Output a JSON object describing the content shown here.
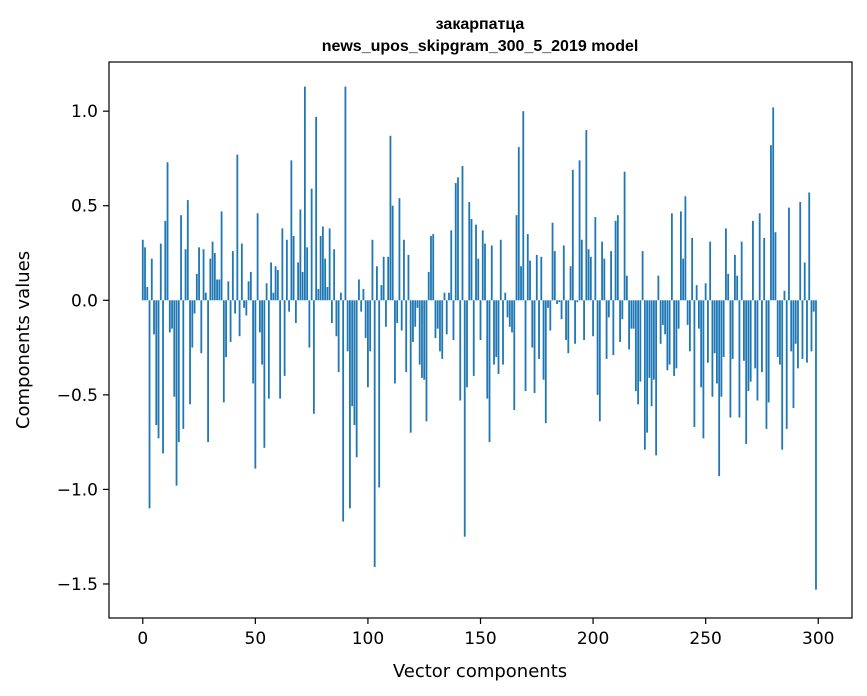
{
  "chart_data": {
    "type": "bar",
    "title_line1": "закарпатца",
    "title_line2": "news_upos_skipgram_300_5_2019 model",
    "xlabel": "Vector components",
    "ylabel": "Components values",
    "xlim": [
      -15,
      315
    ],
    "ylim": [
      -1.68,
      1.26
    ],
    "xticks": [
      0,
      50,
      100,
      150,
      200,
      250,
      300
    ],
    "xtick_labels": [
      "0",
      "50",
      "100",
      "150",
      "200",
      "250",
      "300"
    ],
    "yticks": [
      -1.5,
      -1.0,
      -0.5,
      0.0,
      0.5,
      1.0
    ],
    "ytick_labels": [
      "−1.5",
      "−1.0",
      "−0.5",
      "0.0",
      "0.5",
      "1.0"
    ],
    "grid": false,
    "bar_color": "#1f77b4",
    "values": [
      0.32,
      0.28,
      0.07,
      -1.1,
      0.22,
      -0.18,
      -0.66,
      -0.73,
      0.3,
      -0.81,
      0.42,
      0.73,
      -0.17,
      -0.15,
      -0.51,
      -0.98,
      -0.75,
      0.45,
      -0.68,
      0.27,
      0.53,
      -0.55,
      -0.25,
      -0.07,
      0.14,
      0.28,
      -0.28,
      0.27,
      0.04,
      -0.75,
      0.22,
      0.31,
      0.25,
      0.11,
      0.11,
      0.47,
      -0.54,
      -0.3,
      0.1,
      -0.22,
      0.26,
      -0.07,
      0.77,
      -0.19,
      0.3,
      -0.04,
      -0.08,
      0.1,
      0.15,
      -0.44,
      -0.89,
      0.46,
      -0.17,
      -0.34,
      -0.78,
      0.09,
      -0.52,
      0.2,
      0.04,
      0.18,
      0.16,
      -0.52,
      0.38,
      -0.4,
      0.32,
      -0.06,
      0.74,
      0.34,
      -0.12,
      0.2,
      0.48,
      0.15,
      1.13,
      0.28,
      -0.25,
      0.59,
      -0.6,
      0.97,
      0.06,
      0.34,
      0.39,
      0.22,
      0.07,
      0.38,
      -0.12,
      0.27,
      -0.19,
      -0.38,
      0.04,
      -1.17,
      1.13,
      -0.27,
      -1.1,
      -0.56,
      -0.66,
      -0.83,
      0.11,
      -0.06,
      0.06,
      -0.2,
      -0.46,
      -0.27,
      0.32,
      -1.41,
      0.18,
      -0.99,
      0.08,
      0.23,
      -0.14,
      0.23,
      0.87,
      0.5,
      -0.44,
      -0.12,
      0.54,
      -0.16,
      0.32,
      -0.38,
      0.24,
      -0.7,
      -0.22,
      -0.14,
      -0.04,
      -0.34,
      -0.41,
      -0.42,
      -0.64,
      0.15,
      0.34,
      0.35,
      -0.2,
      -0.15,
      -0.27,
      -0.31,
      0.04,
      -0.18,
      0.04,
      0.37,
      -0.21,
      0.62,
      0.65,
      -0.53,
      0.71,
      -1.25,
      -0.46,
      0.52,
      0.43,
      -0.4,
      0.4,
      0.22,
      -0.21,
      0.37,
      0.3,
      -0.52,
      -0.75,
      0.29,
      -0.34,
      -0.3,
      -0.39,
      0.32,
      -0.34,
      0.04,
      -0.09,
      -0.14,
      -0.17,
      -0.58,
      0.45,
      0.81,
      0.18,
      1.0,
      -0.48,
      0.35,
      0.21,
      -0.25,
      -0.49,
      0.24,
      -0.31,
      0.23,
      -0.42,
      -0.65,
      -0.04,
      -0.16,
      0.41,
      0.26,
      -0.02,
      -0.01,
      -0.1,
      0.29,
      -0.21,
      -0.28,
      0.18,
      0.69,
      -0.23,
      -0.01,
      0.74,
      0.32,
      -0.21,
      0.9,
      0.27,
      0.23,
      -0.19,
      0.44,
      -0.5,
      -0.64,
      0.31,
      0.22,
      -0.31,
      -0.09,
      0.26,
      -0.29,
      0.42,
      0.45,
      -0.22,
      -0.1,
      0.68,
      0.13,
      -0.26,
      -0.15,
      -0.15,
      -0.48,
      -0.55,
      -0.43,
      0.26,
      -0.79,
      -0.7,
      -0.41,
      -0.56,
      -0.42,
      -0.82,
      0.13,
      -0.23,
      -0.13,
      -0.18,
      -0.37,
      -0.34,
      0.46,
      -0.4,
      -0.36,
      -0.15,
      0.47,
      0.22,
      0.55,
      -0.13,
      -0.27,
      0.33,
      -0.67,
      0.08,
      -0.15,
      -0.46,
      -0.73,
      0.09,
      -0.33,
      0.31,
      -0.51,
      -0.28,
      -0.44,
      -0.93,
      -0.51,
      -0.3,
      0.38,
      0.14,
      -0.62,
      -0.31,
      0.24,
      0.13,
      -0.62,
      0.31,
      -0.32,
      -0.76,
      -0.48,
      -0.43,
      0.42,
      -0.36,
      -0.53,
      0.46,
      -0.38,
      0.33,
      -0.68,
      -0.54,
      0.82,
      1.02,
      0.36,
      -0.3,
      -0.34,
      -0.79,
      0.05,
      -0.68,
      0.49,
      -0.27,
      -0.57,
      -0.23,
      -0.36,
      0.52,
      -0.31,
      0.2,
      -0.33,
      0.57,
      -0.27,
      -0.06,
      -1.53
    ]
  }
}
